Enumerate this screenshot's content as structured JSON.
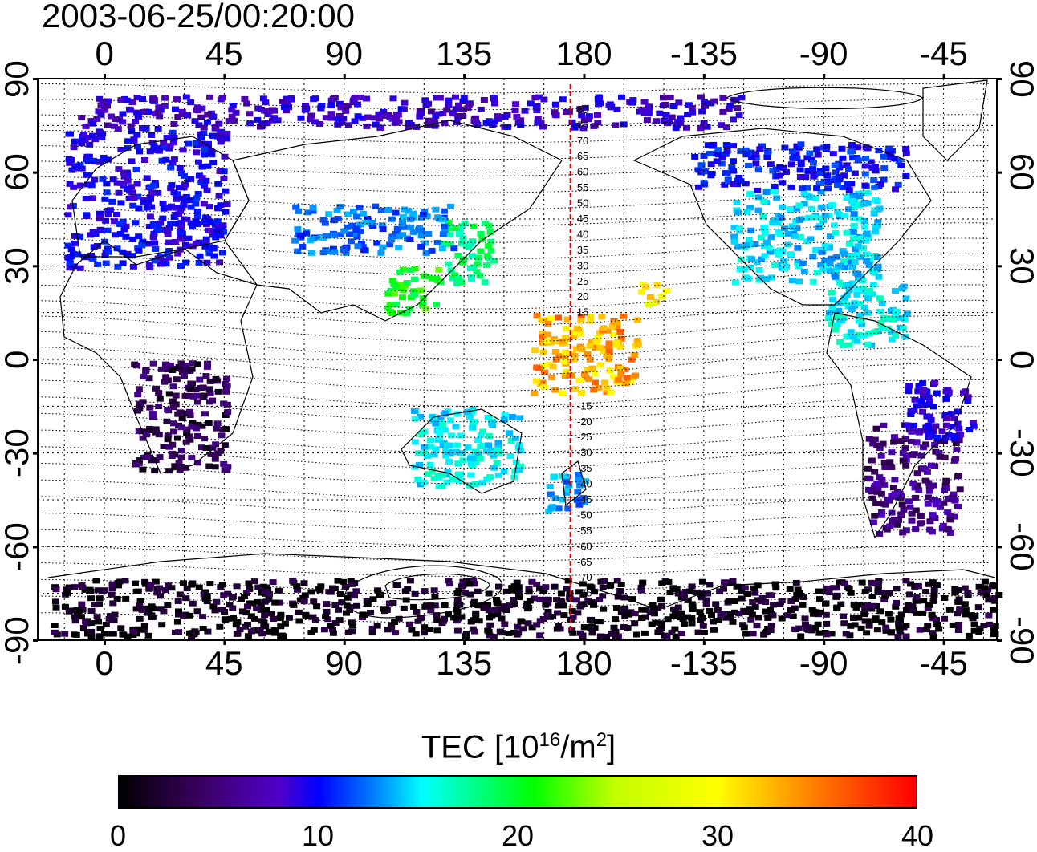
{
  "title": "2003-06-25/00:20:00",
  "top_lon_labels": [
    "0",
    "45",
    "90",
    "135",
    "180",
    "-135",
    "-90",
    "-45"
  ],
  "bottom_lon_labels": [
    "0",
    "45",
    "90",
    "135",
    "180",
    "-135",
    "-90",
    "-45"
  ],
  "left_lat_labels": [
    "90",
    "60",
    "30",
    "0",
    "-30",
    "-60",
    "-90"
  ],
  "right_lat_labels": [
    "90",
    "60",
    "30",
    "0",
    "-30",
    "-60",
    "-90"
  ],
  "meridian_lon": 175,
  "meridian_color": "#e00000",
  "meridian_labels_north": [
    "80",
    "75",
    "70",
    "65",
    "60",
    "55",
    "50",
    "45",
    "40",
    "35",
    "30",
    "25",
    "20",
    "15"
  ],
  "meridian_labels_south": [
    "-15",
    "-20",
    "-25",
    "-30",
    "-35",
    "-40",
    "-45",
    "-50",
    "-55",
    "-60",
    "-65",
    "-70",
    "-75"
  ],
  "colorbar": {
    "title_main": "TEC  [10",
    "title_exp": "16",
    "title_unit": "/m",
    "title_exp2": "2",
    "title_end": "]",
    "min": 0,
    "max": 40,
    "tick_labels": [
      "0",
      "10",
      "20",
      "30",
      "40"
    ],
    "colors": [
      "#000000",
      "#3a0060",
      "#5000c8",
      "#0000ff",
      "#0080ff",
      "#00ffff",
      "#00ff80",
      "#00ff00",
      "#c0ff00",
      "#ffff00",
      "#ff8000",
      "#ff0000"
    ]
  },
  "tec_regions": [
    {
      "name": "europe",
      "lon": [
        -15,
        45
      ],
      "lat": [
        30,
        75
      ],
      "tec": 10
    },
    {
      "name": "north-america",
      "lon": [
        -125,
        -70
      ],
      "lat": [
        25,
        55
      ],
      "tec": 17
    },
    {
      "name": "canada",
      "lon": [
        -140,
        -60
      ],
      "lat": [
        55,
        70
      ],
      "tec": 11
    },
    {
      "name": "arctic",
      "lon": [
        -120,
        -10
      ],
      "lat": [
        75,
        85
      ],
      "tec": 8
    },
    {
      "name": "japan",
      "lon": [
        125,
        145
      ],
      "lat": [
        25,
        45
      ],
      "tec": 22
    },
    {
      "name": "central-asia",
      "lon": [
        70,
        130
      ],
      "lat": [
        35,
        50
      ],
      "tec": 14
    },
    {
      "name": "south-china",
      "lon": [
        105,
        125
      ],
      "lat": [
        15,
        30
      ],
      "tec": 25
    },
    {
      "name": "africa",
      "lon": [
        10,
        45
      ],
      "lat": [
        -35,
        0
      ],
      "tec": 3
    },
    {
      "name": "australia",
      "lon": [
        115,
        155
      ],
      "lat": [
        -40,
        -15
      ],
      "tec": 18
    },
    {
      "name": "new-zealand",
      "lon": [
        165,
        180
      ],
      "lat": [
        -48,
        -35
      ],
      "tec": 15
    },
    {
      "name": "south-america",
      "lon": [
        -75,
        -40
      ],
      "lat": [
        -55,
        -20
      ],
      "tec": 5
    },
    {
      "name": "brazil",
      "lon": [
        -60,
        -35
      ],
      "lat": [
        -25,
        -5
      ],
      "tec": 9
    },
    {
      "name": "pacific-islands",
      "lon": [
        160,
        200
      ],
      "lat": [
        -10,
        15
      ],
      "tec": 35
    },
    {
      "name": "hawaii",
      "lon": [
        -160,
        -150
      ],
      "lat": [
        18,
        25
      ],
      "tec": 33
    },
    {
      "name": "antarctica",
      "lon": [
        -20,
        340
      ],
      "lat": [
        -88,
        -70
      ],
      "tec": 1
    },
    {
      "name": "caribbean",
      "lon": [
        -90,
        -60
      ],
      "lat": [
        5,
        25
      ],
      "tec": 18
    }
  ]
}
